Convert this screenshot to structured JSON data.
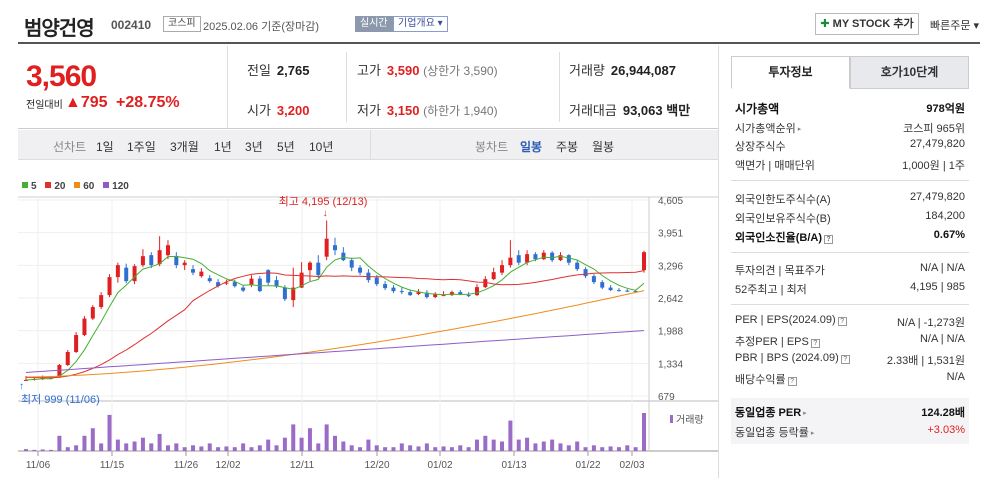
{
  "header": {
    "title": "범양건영",
    "code": "002410",
    "market_tag": "코스피",
    "date_text": "2025.02.06  기준(장마감)",
    "realtime_tag": "실시간",
    "company_tag": "기업개요 ▾",
    "mystock_label": "MY STOCK 추가",
    "mystock_plus": "✚",
    "quick_label": "빠른주문 ▾"
  },
  "price": {
    "current": "3,560",
    "change_label": "전일대비",
    "change_arrow": "▲",
    "change_value": "795",
    "change_pct": "+28.75%"
  },
  "metrics": {
    "prev_label": "전일",
    "prev_value": "2,765",
    "high_label": "고가",
    "high_value": "3,590",
    "high_limit": "(상한가 3,590)",
    "volume_label": "거래량",
    "volume_value": "26,944,087",
    "open_label": "시가",
    "open_value": "3,200",
    "low_label": "저가",
    "low_value": "3,150",
    "low_limit": "(하한가 1,940)",
    "amount_label": "거래대금",
    "amount_value": "93,063",
    "amount_unit": "백만"
  },
  "toolbar": {
    "line_chart": "선차트",
    "periods": [
      "1일",
      "1주일",
      "3개월",
      "1년",
      "3년",
      "5년",
      "10년"
    ],
    "candle_chart": "봉차트",
    "daily": "일봉",
    "weekly": "주봉",
    "monthly": "월봉"
  },
  "legend": [
    "5",
    "20",
    "60",
    "120"
  ],
  "colors": {
    "up": "#e02020",
    "down": "#2f6fd0",
    "ma5": "#44b030",
    "ma20": "#e03030",
    "ma60": "#f08c1c",
    "ma120": "#8e5cc8",
    "volume": "#9b6bc8"
  },
  "chart_data": {
    "type": "candlestick",
    "y_ticks": [
      "4,605",
      "3,951",
      "3,296",
      "2,642",
      "1,988",
      "1,334",
      "679"
    ],
    "x_ticks": [
      "11/06",
      "11/15",
      "11/26",
      "12/02",
      "12/11",
      "12/20",
      "01/02",
      "01/13",
      "01/22",
      "02/03"
    ],
    "high_annotation": "최고 4,195 (12/13)",
    "low_annotation": "최저 999 (11/06)",
    "volume_label": "거래량",
    "ylim": [
      679,
      4605
    ]
  },
  "info": {
    "tab_active": "투자정보",
    "tab_other": "호가10단계",
    "market_cap_label": "시가총액",
    "market_cap_value": "978억원",
    "rank_label": "시가총액순위",
    "rank_value": "코스피 965위",
    "shares_label": "상장주식수",
    "shares_value": "27,479,820",
    "par_label": "액면가 | 매매단위",
    "par_value": "1,000원 | 1주",
    "foreign_limit_label": "외국인한도주식수(A)",
    "foreign_limit_value": "27,479,820",
    "foreign_hold_label": "외국인보유주식수(B)",
    "foreign_hold_value": "184,200",
    "foreign_ratio_label": "외국인소진율(B/A)",
    "foreign_ratio_value": "0.67%",
    "opinion_label": "투자의견 | 목표주가",
    "opinion_value": "N/A | N/A",
    "w52_label": "52주최고 | 최저",
    "w52_value": "4,195 | 985",
    "per_label": "PER | EPS(2024.09)",
    "per_value": "N/A | -1,273원",
    "eper_label": "추정PER | EPS",
    "eper_value": "N/A | N/A",
    "pbr_label": "PBR | BPS (2024.09)",
    "pbr_value": "2.33배 | 1,531원",
    "div_label": "배당수익률",
    "div_value": "N/A",
    "sector_per_label": "동일업종 PER",
    "sector_per_value": "124.28배",
    "sector_rate_label": "동일업종 등락률",
    "sector_rate_value": "+3.03%"
  }
}
